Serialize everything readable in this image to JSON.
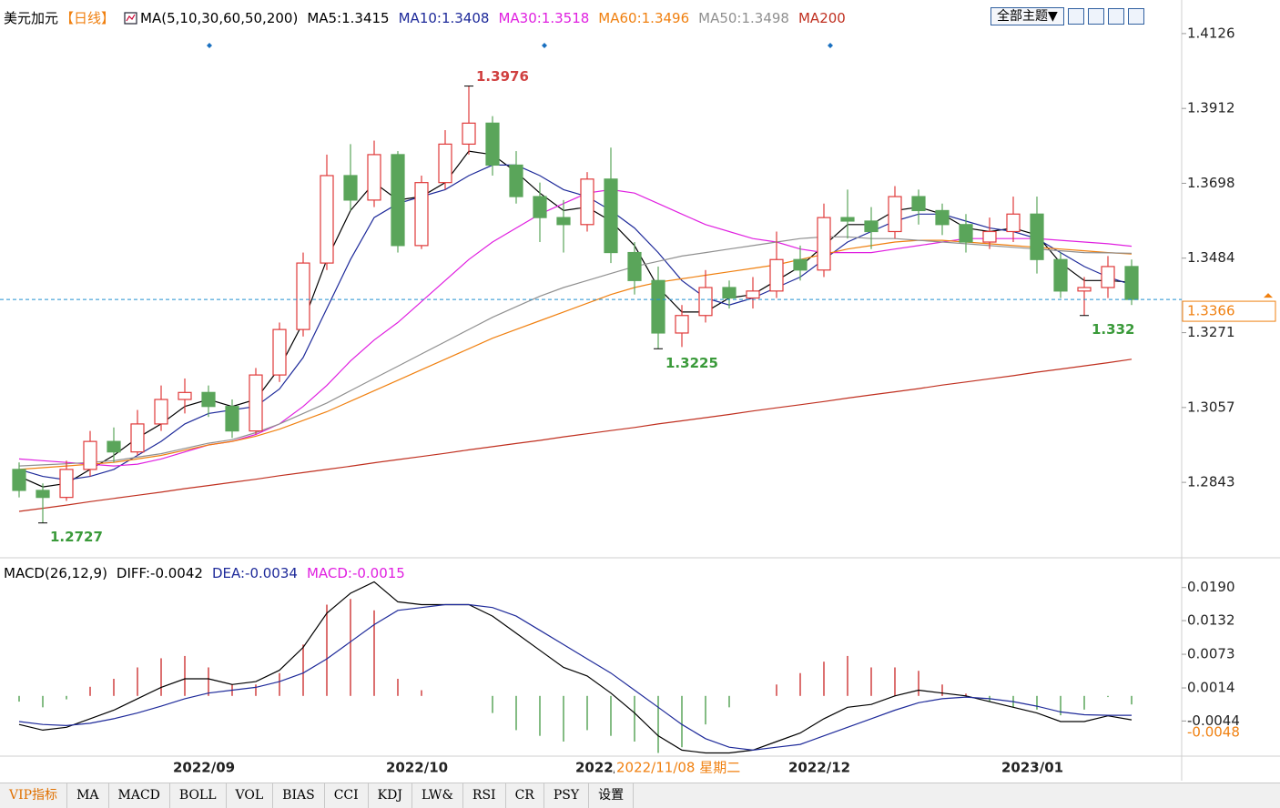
{
  "toolbar": {
    "theme_button": "全部主题▼"
  },
  "tabs": [
    "VIP指标",
    "MA",
    "MACD",
    "BOLL",
    "VOL",
    "BIAS",
    "CCI",
    "KDJ",
    "LW&",
    "RSI",
    "CR",
    "PSY",
    "设置"
  ],
  "chart_data": [
    {
      "type": "candlestick",
      "title": "美元加元",
      "period": "【日线】",
      "ma_title": "MA(5,10,30,60,50,200)",
      "up_color": "#e03a3a",
      "down_color": "#5aa55a",
      "categories": [
        null,
        null,
        null,
        null,
        null,
        null,
        null,
        "2022/09",
        null,
        null,
        null,
        null,
        null,
        null,
        null,
        null,
        "2022/10",
        null,
        null,
        null,
        null,
        null,
        null,
        null,
        "2022/",
        null,
        null,
        null,
        null,
        null,
        null,
        null,
        null,
        "2022/12",
        null,
        null,
        null,
        null,
        null,
        null,
        null,
        null,
        "2023/01",
        null,
        null,
        null,
        null,
        null
      ],
      "crosshair_label": "2022/11/08 星期二",
      "open": [
        1.288,
        1.282,
        1.28,
        1.288,
        1.296,
        1.293,
        1.301,
        1.308,
        1.31,
        1.306,
        1.299,
        1.315,
        1.328,
        1.347,
        1.372,
        1.365,
        1.378,
        1.352,
        1.37,
        1.381,
        1.387,
        1.375,
        1.366,
        1.36,
        1.358,
        1.371,
        1.35,
        1.342,
        1.327,
        1.332,
        1.34,
        1.337,
        1.339,
        1.348,
        1.345,
        1.36,
        1.359,
        1.356,
        1.366,
        1.362,
        1.358,
        1.353,
        1.356,
        1.361,
        1.348,
        1.339,
        1.34,
        1.346
      ],
      "high": [
        1.29,
        1.284,
        1.2905,
        1.299,
        1.3,
        1.305,
        1.312,
        1.314,
        1.312,
        1.308,
        1.317,
        1.33,
        1.35,
        1.378,
        1.381,
        1.382,
        1.379,
        1.372,
        1.385,
        1.3976,
        1.389,
        1.379,
        1.37,
        1.365,
        1.373,
        1.38,
        1.353,
        1.346,
        1.335,
        1.345,
        1.342,
        1.343,
        1.356,
        1.352,
        1.364,
        1.368,
        1.363,
        1.369,
        1.368,
        1.364,
        1.361,
        1.36,
        1.366,
        1.366,
        1.35,
        1.343,
        1.349,
        1.348
      ],
      "low": [
        1.28,
        1.2727,
        1.279,
        1.286,
        1.29,
        1.292,
        1.299,
        1.304,
        1.303,
        1.297,
        1.298,
        1.313,
        1.326,
        1.345,
        1.362,
        1.363,
        1.35,
        1.351,
        1.368,
        1.378,
        1.372,
        1.364,
        1.353,
        1.35,
        1.356,
        1.347,
        1.338,
        1.3225,
        1.323,
        1.33,
        1.334,
        1.334,
        1.337,
        1.342,
        1.343,
        1.354,
        1.351,
        1.354,
        1.358,
        1.355,
        1.35,
        1.351,
        1.353,
        1.344,
        1.337,
        1.332,
        1.337,
        1.335
      ],
      "close": [
        1.282,
        1.28,
        1.288,
        1.296,
        1.293,
        1.301,
        1.308,
        1.31,
        1.306,
        1.299,
        1.315,
        1.328,
        1.347,
        1.372,
        1.365,
        1.378,
        1.352,
        1.37,
        1.381,
        1.387,
        1.375,
        1.366,
        1.36,
        1.358,
        1.371,
        1.35,
        1.342,
        1.327,
        1.332,
        1.34,
        1.337,
        1.339,
        1.348,
        1.345,
        1.36,
        1.359,
        1.356,
        1.366,
        1.362,
        1.358,
        1.353,
        1.356,
        1.361,
        1.348,
        1.339,
        1.34,
        1.346,
        1.3366
      ],
      "series": [
        {
          "name": "MA5:1.3415",
          "color": "#000000",
          "values": [
            1.286,
            1.283,
            1.284,
            1.288,
            1.292,
            1.297,
            1.301,
            1.306,
            1.308,
            1.306,
            1.308,
            1.317,
            1.33,
            1.348,
            1.362,
            1.37,
            1.365,
            1.366,
            1.37,
            1.379,
            1.378,
            1.373,
            1.367,
            1.362,
            1.363,
            1.359,
            1.352,
            1.34,
            1.333,
            1.333,
            1.337,
            1.338,
            1.342,
            1.346,
            1.352,
            1.358,
            1.358,
            1.362,
            1.363,
            1.361,
            1.357,
            1.356,
            1.357,
            1.355,
            1.347,
            1.342,
            1.342,
            1.3415
          ]
        },
        {
          "name": "MA10:1.3408",
          "color": "#1e2a9a",
          "values": [
            1.288,
            1.286,
            1.285,
            1.286,
            1.288,
            1.292,
            1.296,
            1.301,
            1.304,
            1.305,
            1.306,
            1.311,
            1.32,
            1.334,
            1.348,
            1.36,
            1.364,
            1.366,
            1.368,
            1.372,
            1.375,
            1.375,
            1.372,
            1.368,
            1.366,
            1.362,
            1.357,
            1.35,
            1.342,
            1.337,
            1.335,
            1.337,
            1.34,
            1.343,
            1.348,
            1.353,
            1.356,
            1.359,
            1.361,
            1.361,
            1.359,
            1.357,
            1.356,
            1.354,
            1.35,
            1.346,
            1.343,
            1.3408
          ]
        },
        {
          "name": "MA30:1.3518",
          "color": "#e020e0",
          "values": [
            1.291,
            1.2905,
            1.29,
            1.2895,
            1.289,
            1.2895,
            1.291,
            1.293,
            1.295,
            1.296,
            1.298,
            1.301,
            1.306,
            1.312,
            1.319,
            1.325,
            1.33,
            1.336,
            1.342,
            1.348,
            1.353,
            1.357,
            1.361,
            1.364,
            1.367,
            1.368,
            1.367,
            1.364,
            1.361,
            1.358,
            1.356,
            1.354,
            1.353,
            1.351,
            1.35,
            1.35,
            1.35,
            1.351,
            1.352,
            1.353,
            1.354,
            1.354,
            1.354,
            1.354,
            1.3535,
            1.353,
            1.3525,
            1.3518
          ]
        },
        {
          "name": "MA60:1.3496",
          "color": "#f08010",
          "values": [
            1.288,
            1.2885,
            1.289,
            1.2895,
            1.29,
            1.291,
            1.292,
            1.2935,
            1.295,
            1.296,
            1.2975,
            1.2995,
            1.302,
            1.3045,
            1.3075,
            1.3105,
            1.3135,
            1.3165,
            1.3195,
            1.3225,
            1.3255,
            1.328,
            1.3305,
            1.333,
            1.3355,
            1.338,
            1.34,
            1.3415,
            1.3425,
            1.3435,
            1.3445,
            1.3455,
            1.3465,
            1.348,
            1.3495,
            1.351,
            1.352,
            1.353,
            1.3535,
            1.3535,
            1.353,
            1.3525,
            1.352,
            1.3515,
            1.351,
            1.3505,
            1.35,
            1.3496
          ]
        },
        {
          "name": "MA50:1.3498",
          "color": "#909090",
          "values": [
            1.289,
            1.2893,
            1.2896,
            1.29,
            1.2905,
            1.2915,
            1.2925,
            1.294,
            1.2955,
            1.2965,
            1.2985,
            1.301,
            1.304,
            1.307,
            1.3105,
            1.314,
            1.3175,
            1.321,
            1.3245,
            1.328,
            1.3315,
            1.3345,
            1.3375,
            1.34,
            1.342,
            1.344,
            1.346,
            1.3475,
            1.349,
            1.35,
            1.351,
            1.352,
            1.353,
            1.354,
            1.3545,
            1.3545,
            1.354,
            1.354,
            1.3535,
            1.353,
            1.3525,
            1.352,
            1.3515,
            1.351,
            1.3505,
            1.35,
            1.3499,
            1.3498
          ]
        },
        {
          "name": "MA200",
          "color": "#c03020",
          "values": [
            1.276,
            1.2769,
            1.2778,
            1.2788,
            1.2797,
            1.2806,
            1.2815,
            1.2825,
            1.2834,
            1.2843,
            1.2852,
            1.2862,
            1.2871,
            1.288,
            1.2889,
            1.2899,
            1.2908,
            1.2917,
            1.2926,
            1.2936,
            1.2945,
            1.2954,
            1.2963,
            1.2973,
            1.2982,
            1.2991,
            1.3,
            1.301,
            1.3019,
            1.3028,
            1.3037,
            1.3047,
            1.3056,
            1.3065,
            1.3074,
            1.3084,
            1.3093,
            1.3102,
            1.3111,
            1.3121,
            1.313,
            1.3139,
            1.3148,
            1.3158,
            1.3167,
            1.3176,
            1.3185,
            1.3195
          ]
        }
      ],
      "high_low_labels": [
        1.3976,
        1.2727,
        1.3225,
        1.332
      ],
      "last_price": 1.3366,
      "ylim": [
        1.263,
        1.4209
      ],
      "yticks": [
        1.4126,
        1.3912,
        1.3698,
        1.3484,
        1.3271,
        1.3057,
        1.2843
      ]
    },
    {
      "type": "macd",
      "title": "MACD(26,12,9)",
      "series": [
        {
          "name": "DIFF:-0.0042",
          "color": "#000000",
          "values": [
            -0.005,
            -0.006,
            -0.0055,
            -0.004,
            -0.0025,
            -0.0005,
            0.0015,
            0.003,
            0.003,
            0.002,
            0.0025,
            0.0045,
            0.0085,
            0.0145,
            0.018,
            0.02,
            0.0165,
            0.016,
            0.016,
            0.016,
            0.014,
            0.011,
            0.008,
            0.005,
            0.0035,
            0.0005,
            -0.003,
            -0.007,
            -0.0095,
            -0.01,
            -0.01,
            -0.0095,
            -0.008,
            -0.0065,
            -0.004,
            -0.002,
            -0.0015,
            0.0,
            0.001,
            0.0005,
            0.0,
            -0.001,
            -0.002,
            -0.003,
            -0.0045,
            -0.0045,
            -0.0035,
            -0.0042
          ]
        },
        {
          "name": "DEA:-0.0034",
          "color": "#1e2a9a",
          "values": [
            -0.0045,
            -0.005,
            -0.0052,
            -0.0048,
            -0.004,
            -0.003,
            -0.0018,
            -0.0005,
            0.0005,
            0.001,
            0.0015,
            0.0025,
            0.004,
            0.0065,
            0.0095,
            0.0125,
            0.015,
            0.0155,
            0.016,
            0.016,
            0.0155,
            0.014,
            0.0115,
            0.009,
            0.0065,
            0.004,
            0.001,
            -0.002,
            -0.005,
            -0.0075,
            -0.009,
            -0.0095,
            -0.009,
            -0.0085,
            -0.007,
            -0.0055,
            -0.004,
            -0.0025,
            -0.0012,
            -0.0005,
            -0.0002,
            -0.0005,
            -0.001,
            -0.0018,
            -0.0028,
            -0.0033,
            -0.0034,
            -0.0034
          ]
        },
        {
          "name": "MACD:-0.0015",
          "color": "#e020e0",
          "histogram": true,
          "up_color": "#d04040",
          "down_color": "#5aa55a",
          "values": [
            -0.001,
            -0.002,
            -0.0006,
            0.0016,
            0.003,
            0.005,
            0.0066,
            0.007,
            0.005,
            0.002,
            0.002,
            0.004,
            0.009,
            0.016,
            0.017,
            0.015,
            0.003,
            0.001,
            0.0,
            0.0,
            -0.003,
            -0.006,
            -0.007,
            -0.008,
            -0.006,
            -0.007,
            -0.008,
            -0.01,
            -0.009,
            -0.005,
            -0.002,
            0.0,
            0.002,
            0.004,
            0.006,
            0.007,
            0.005,
            0.005,
            0.0044,
            0.002,
            0.0004,
            -0.001,
            -0.002,
            -0.0024,
            -0.0034,
            -0.0024,
            -0.0002,
            -0.0015
          ]
        }
      ],
      "last_label": -0.0048,
      "ylim": [
        -0.0104,
        0.0239
      ],
      "yticks": [
        {
          "value": 0.019,
          "label": "0.0190"
        },
        0.0132,
        0.0073,
        0.0014,
        -0.0044
      ]
    }
  ]
}
